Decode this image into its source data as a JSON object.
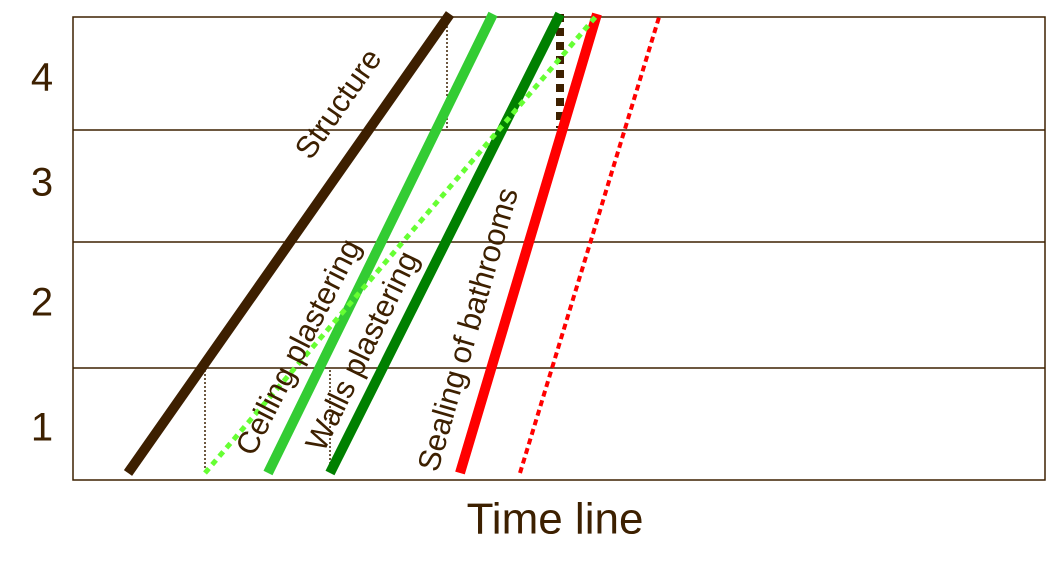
{
  "floors": [
    "1",
    "2",
    "3",
    "4"
  ],
  "activities": [
    "Structure",
    "Ceiling plastering",
    "Walls plastering",
    "Sealing of bathrooms"
  ],
  "x_axis_label": "Time line"
}
